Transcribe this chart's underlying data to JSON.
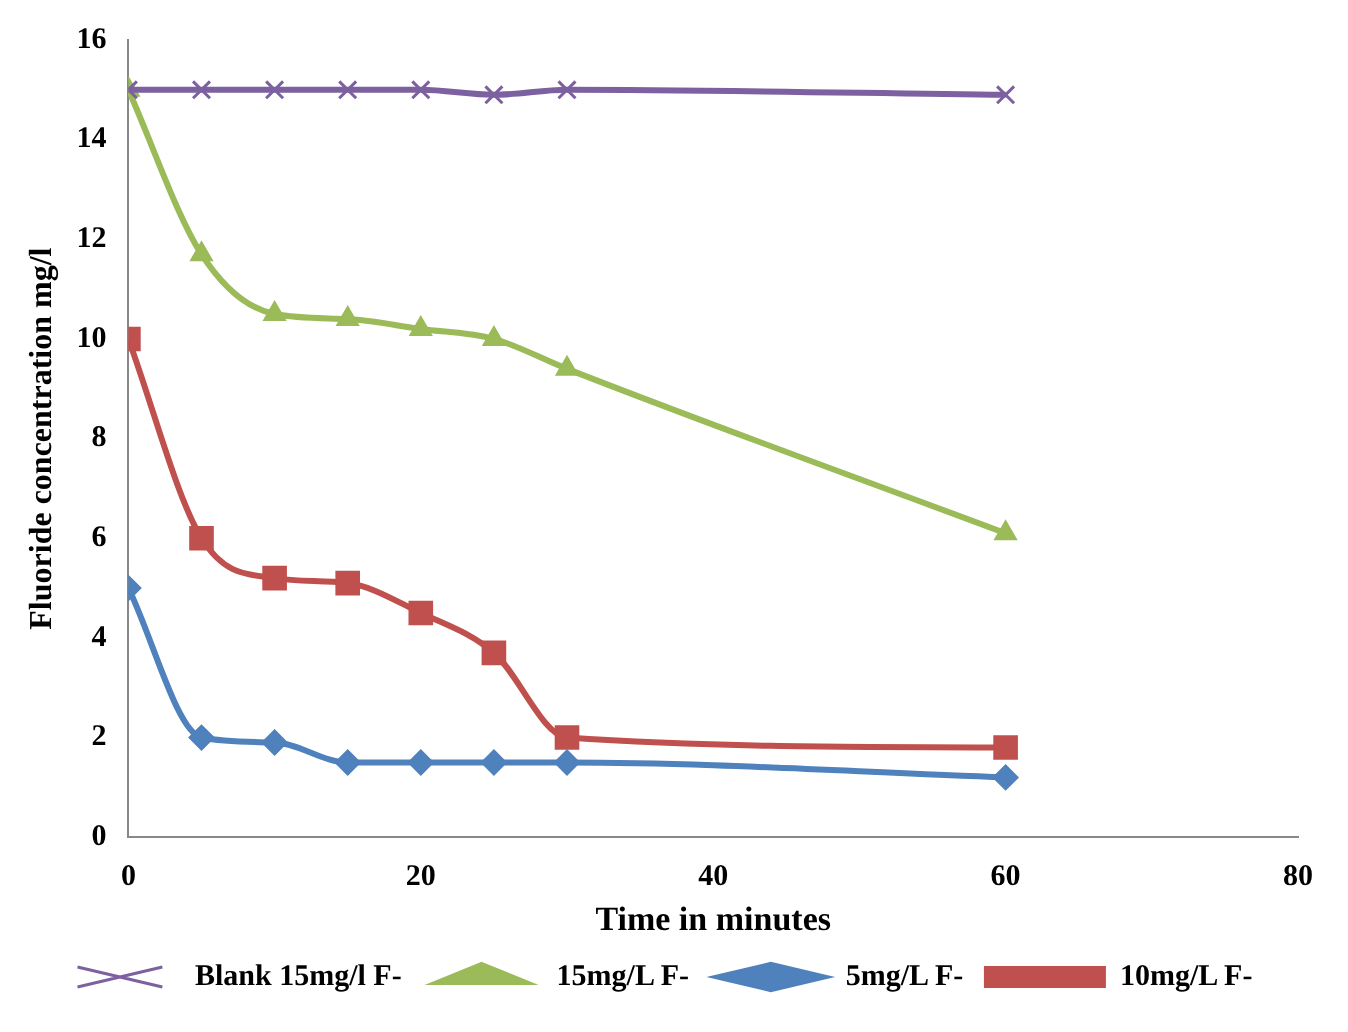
{
  "chart_data": {
    "type": "line",
    "xlabel": "Time in minutes",
    "ylabel": "Fluoride concentration mg/l",
    "x": [
      0,
      5,
      10,
      15,
      20,
      25,
      30,
      60
    ],
    "series": [
      {
        "name": "Blank 15mg/l F-",
        "color": "#7d60a0",
        "marker": "cross",
        "values": [
          15,
          15,
          15,
          15,
          15,
          14.9,
          15,
          14.9
        ]
      },
      {
        "name": "15mg/L F-",
        "color": "#9bbb59",
        "marker": "triangle",
        "values": [
          15,
          11.7,
          10.5,
          10.4,
          10.2,
          10,
          9.4,
          6.1
        ]
      },
      {
        "name": "5mg/L F-",
        "color": "#4f81bd",
        "marker": "diamond",
        "values": [
          5,
          2,
          1.9,
          1.5,
          1.5,
          1.5,
          1.5,
          1.2
        ]
      },
      {
        "name": "10mg/L F-",
        "color": "#c0504d",
        "marker": "square",
        "values": [
          10,
          6,
          5.2,
          5.1,
          4.5,
          3.7,
          2,
          1.8
        ]
      }
    ],
    "xlim": [
      0,
      80
    ],
    "xticks": [
      0,
      20,
      40,
      60,
      80
    ],
    "ylim": [
      0,
      16
    ],
    "yticks": [
      0,
      2,
      4,
      6,
      8,
      10,
      12,
      14,
      16
    ],
    "grid": false,
    "legend": "bottom",
    "line_style": "solid"
  }
}
